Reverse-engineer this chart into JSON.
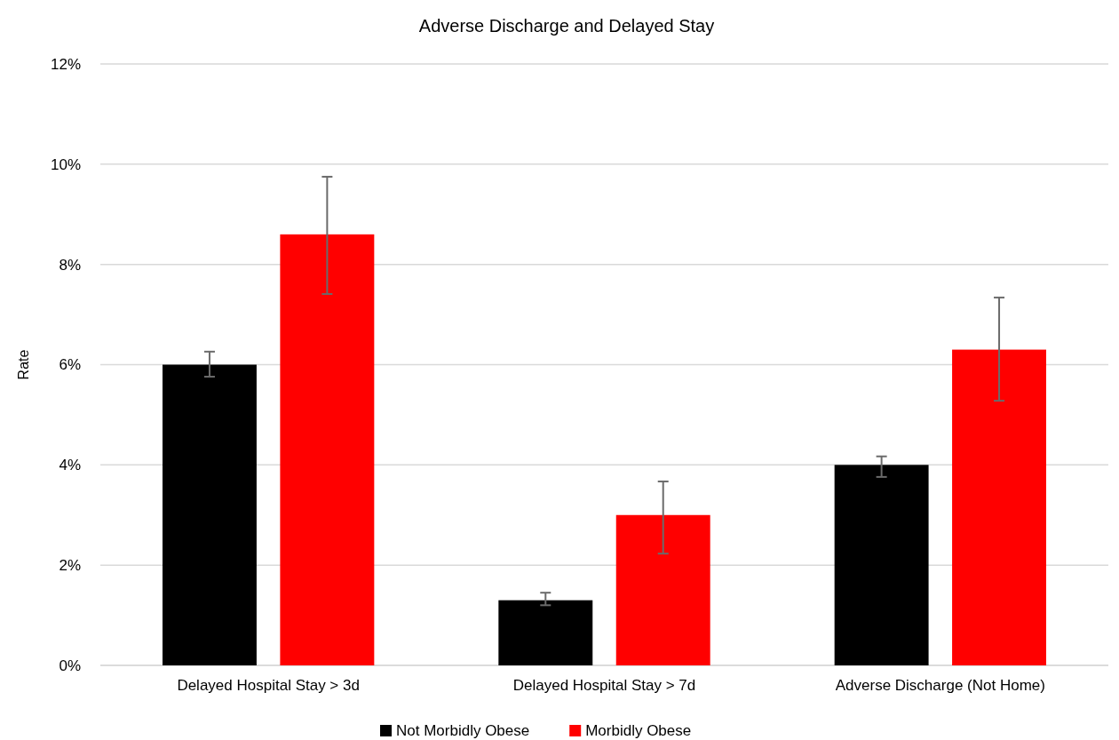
{
  "chart_data": {
    "type": "bar",
    "title": "Adverse Discharge and Delayed Stay",
    "ylabel": "Rate",
    "categories": [
      "Delayed Hospital Stay > 3d",
      "Delayed Hospital Stay > 7d",
      "Adverse Discharge (Not Home)"
    ],
    "series": [
      {
        "name": "Not Morbidly Obese",
        "color": "#000000",
        "values": [
          6.0,
          1.3,
          4.0
        ],
        "errors": [
          [
            5.76,
            6.26
          ],
          [
            1.2,
            1.45
          ],
          [
            3.76,
            4.17
          ]
        ]
      },
      {
        "name": "Morbidly Obese",
        "color": "#ff0000",
        "values": [
          8.6,
          3.0,
          6.3
        ],
        "errors": [
          [
            7.41,
            9.75
          ],
          [
            2.23,
            3.67
          ],
          [
            5.28,
            7.34
          ]
        ]
      }
    ],
    "ylim": [
      0,
      12
    ],
    "yticks": [
      {
        "value": 0,
        "label": "0%"
      },
      {
        "value": 2,
        "label": "2%"
      },
      {
        "value": 4,
        "label": "4%"
      },
      {
        "value": 6,
        "label": "6%"
      },
      {
        "value": 8,
        "label": "8%"
      },
      {
        "value": 10,
        "label": "10%"
      },
      {
        "value": 12,
        "label": "12%"
      }
    ],
    "grid": "y",
    "legend": "bottom"
  }
}
